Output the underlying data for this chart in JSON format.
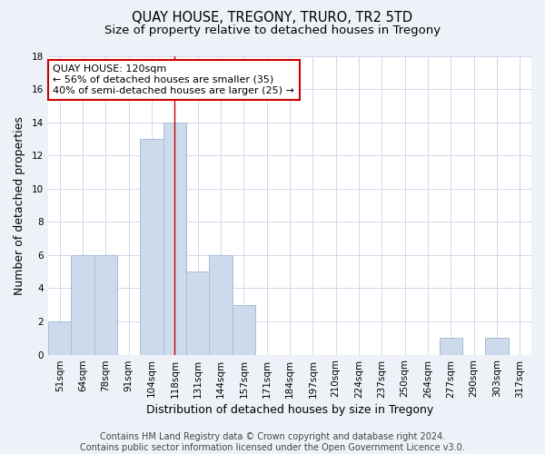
{
  "title": "QUAY HOUSE, TREGONY, TRURO, TR2 5TD",
  "subtitle": "Size of property relative to detached houses in Tregony",
  "xlabel": "Distribution of detached houses by size in Tregony",
  "ylabel": "Number of detached properties",
  "bar_labels": [
    "51sqm",
    "64sqm",
    "78sqm",
    "91sqm",
    "104sqm",
    "118sqm",
    "131sqm",
    "144sqm",
    "157sqm",
    "171sqm",
    "184sqm",
    "197sqm",
    "210sqm",
    "224sqm",
    "237sqm",
    "250sqm",
    "264sqm",
    "277sqm",
    "290sqm",
    "303sqm",
    "317sqm"
  ],
  "bar_values": [
    2,
    6,
    6,
    0,
    13,
    14,
    5,
    6,
    3,
    0,
    0,
    0,
    0,
    0,
    0,
    0,
    0,
    1,
    0,
    1,
    0
  ],
  "bar_color": "#cddaec",
  "bar_edge_color": "#a8bdd6",
  "vline_x_idx": 5,
  "vline_color": "#cc0000",
  "ylim": [
    0,
    18
  ],
  "yticks": [
    0,
    2,
    4,
    6,
    8,
    10,
    12,
    14,
    16,
    18
  ],
  "annotation_lines": [
    "QUAY HOUSE: 120sqm",
    "← 56% of detached houses are smaller (35)",
    "40% of semi-detached houses are larger (25) →"
  ],
  "annotation_box_color": "#ffffff",
  "annotation_box_edge": "#cc0000",
  "footer_lines": [
    "Contains HM Land Registry data © Crown copyright and database right 2024.",
    "Contains public sector information licensed under the Open Government Licence v3.0."
  ],
  "bg_color": "#eef2f8",
  "plot_bg_color": "#ffffff",
  "grid_color": "#d0d8ea",
  "title_fontsize": 10.5,
  "subtitle_fontsize": 9.5,
  "tick_fontsize": 7.5,
  "xlabel_fontsize": 9,
  "ylabel_fontsize": 9,
  "annotation_fontsize": 8,
  "footer_fontsize": 7
}
